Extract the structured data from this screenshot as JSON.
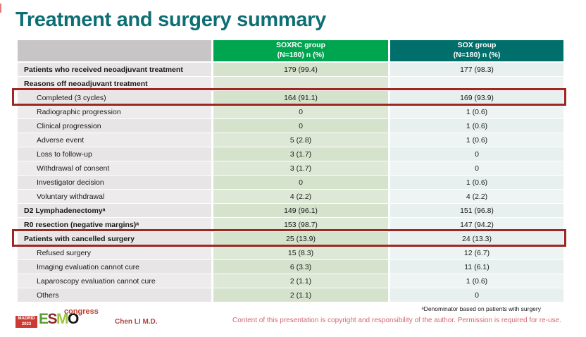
{
  "slide": {
    "title": "Treatment and surgery summary",
    "presenter": "Chen LI M.D.",
    "footnote": "ᵃDenominator based on patients with surgery",
    "disclaimer": "Content of this presentation is copyright and responsibility of the author. Permission is required for re-use."
  },
  "logo": {
    "city": "MADRID",
    "year": "2023",
    "letter_e": "E",
    "letter_s": "S",
    "letter_m": "M",
    "letter_o": "O",
    "suffix": "congress"
  },
  "table": {
    "columns": [
      {
        "label": "",
        "sublabel": ""
      },
      {
        "label": "SOXRC group",
        "sublabel": "(N=180)  n (%)"
      },
      {
        "label": "SOX group",
        "sublabel": "(N=180)  n (%)"
      }
    ],
    "rows": [
      {
        "label": "Patients who received neoadjuvant treatment",
        "soxrc": "179 (99.4)",
        "sox": "177 (98.3)",
        "bold": true,
        "indent": false,
        "highlight": false
      },
      {
        "label": "Reasons off neoadjuvant treatment",
        "soxrc": "",
        "sox": "",
        "bold": true,
        "indent": false,
        "highlight": false
      },
      {
        "label": "Completed (3 cycles)",
        "soxrc": "164 (91.1)",
        "sox": "169 (93.9)",
        "bold": false,
        "indent": true,
        "highlight": true
      },
      {
        "label": "Radiographic progression",
        "soxrc": "0",
        "sox": "1 (0.6)",
        "bold": false,
        "indent": true,
        "highlight": false
      },
      {
        "label": "Clinical progression",
        "soxrc": "0",
        "sox": "1 (0.6)",
        "bold": false,
        "indent": true,
        "highlight": false
      },
      {
        "label": "Adverse event",
        "soxrc": "5 (2.8)",
        "sox": "1 (0.6)",
        "bold": false,
        "indent": true,
        "highlight": false
      },
      {
        "label": "Loss to follow-up",
        "soxrc": "3 (1.7)",
        "sox": "0",
        "bold": false,
        "indent": true,
        "highlight": false
      },
      {
        "label": "Withdrawal of consent",
        "soxrc": "3 (1.7)",
        "sox": "0",
        "bold": false,
        "indent": true,
        "highlight": false
      },
      {
        "label": "Investigator decision",
        "soxrc": "0",
        "sox": "1 (0.6)",
        "bold": false,
        "indent": true,
        "highlight": false
      },
      {
        "label": "Voluntary withdrawal",
        "soxrc": "4 (2.2)",
        "sox": "4 (2.2)",
        "bold": false,
        "indent": true,
        "highlight": false
      },
      {
        "label": "D2 Lymphadenectomyᵃ",
        "soxrc": "149 (96.1)",
        "sox": "151 (96.8)",
        "bold": true,
        "indent": false,
        "highlight": false
      },
      {
        "label": "R0 resection (negative margins)ᵃ",
        "soxrc": "153 (98.7)",
        "sox": "147 (94.2)",
        "bold": true,
        "indent": false,
        "highlight": false
      },
      {
        "label": "Patients with cancelled surgery",
        "soxrc": "25 (13.9)",
        "sox": "24 (13.3)",
        "bold": true,
        "indent": false,
        "highlight": true
      },
      {
        "label": "Refused surgery",
        "soxrc": "15 (8.3)",
        "sox": "12 (6.7)",
        "bold": false,
        "indent": true,
        "highlight": false
      },
      {
        "label": "Imaging evaluation cannot cure",
        "soxrc": "6 (3.3)",
        "sox": "11 (6.1)",
        "bold": false,
        "indent": true,
        "highlight": false
      },
      {
        "label": "Laparoscopy evaluation cannot cure",
        "soxrc": "2 (1.1)",
        "sox": "1 (0.6)",
        "bold": false,
        "indent": true,
        "highlight": false
      },
      {
        "label": "Others",
        "soxrc": "2 (1.1)",
        "sox": "0",
        "bold": false,
        "indent": true,
        "highlight": false
      }
    ]
  },
  "colors": {
    "title": "#0d6e74",
    "header_soxrc": "#00a550",
    "header_sox": "#006f6b",
    "header_blank": "#c7c5c5",
    "soxrc_column_bg": "#d5e3cd",
    "sox_column_bg": "#e7f0ef",
    "label_column_bg": "#e7e5e5",
    "highlight_border": "#9c2823",
    "disclaimer_text": "#d4686e",
    "presenter_text": "#b0423d",
    "logo_red": "#cc3b33"
  }
}
